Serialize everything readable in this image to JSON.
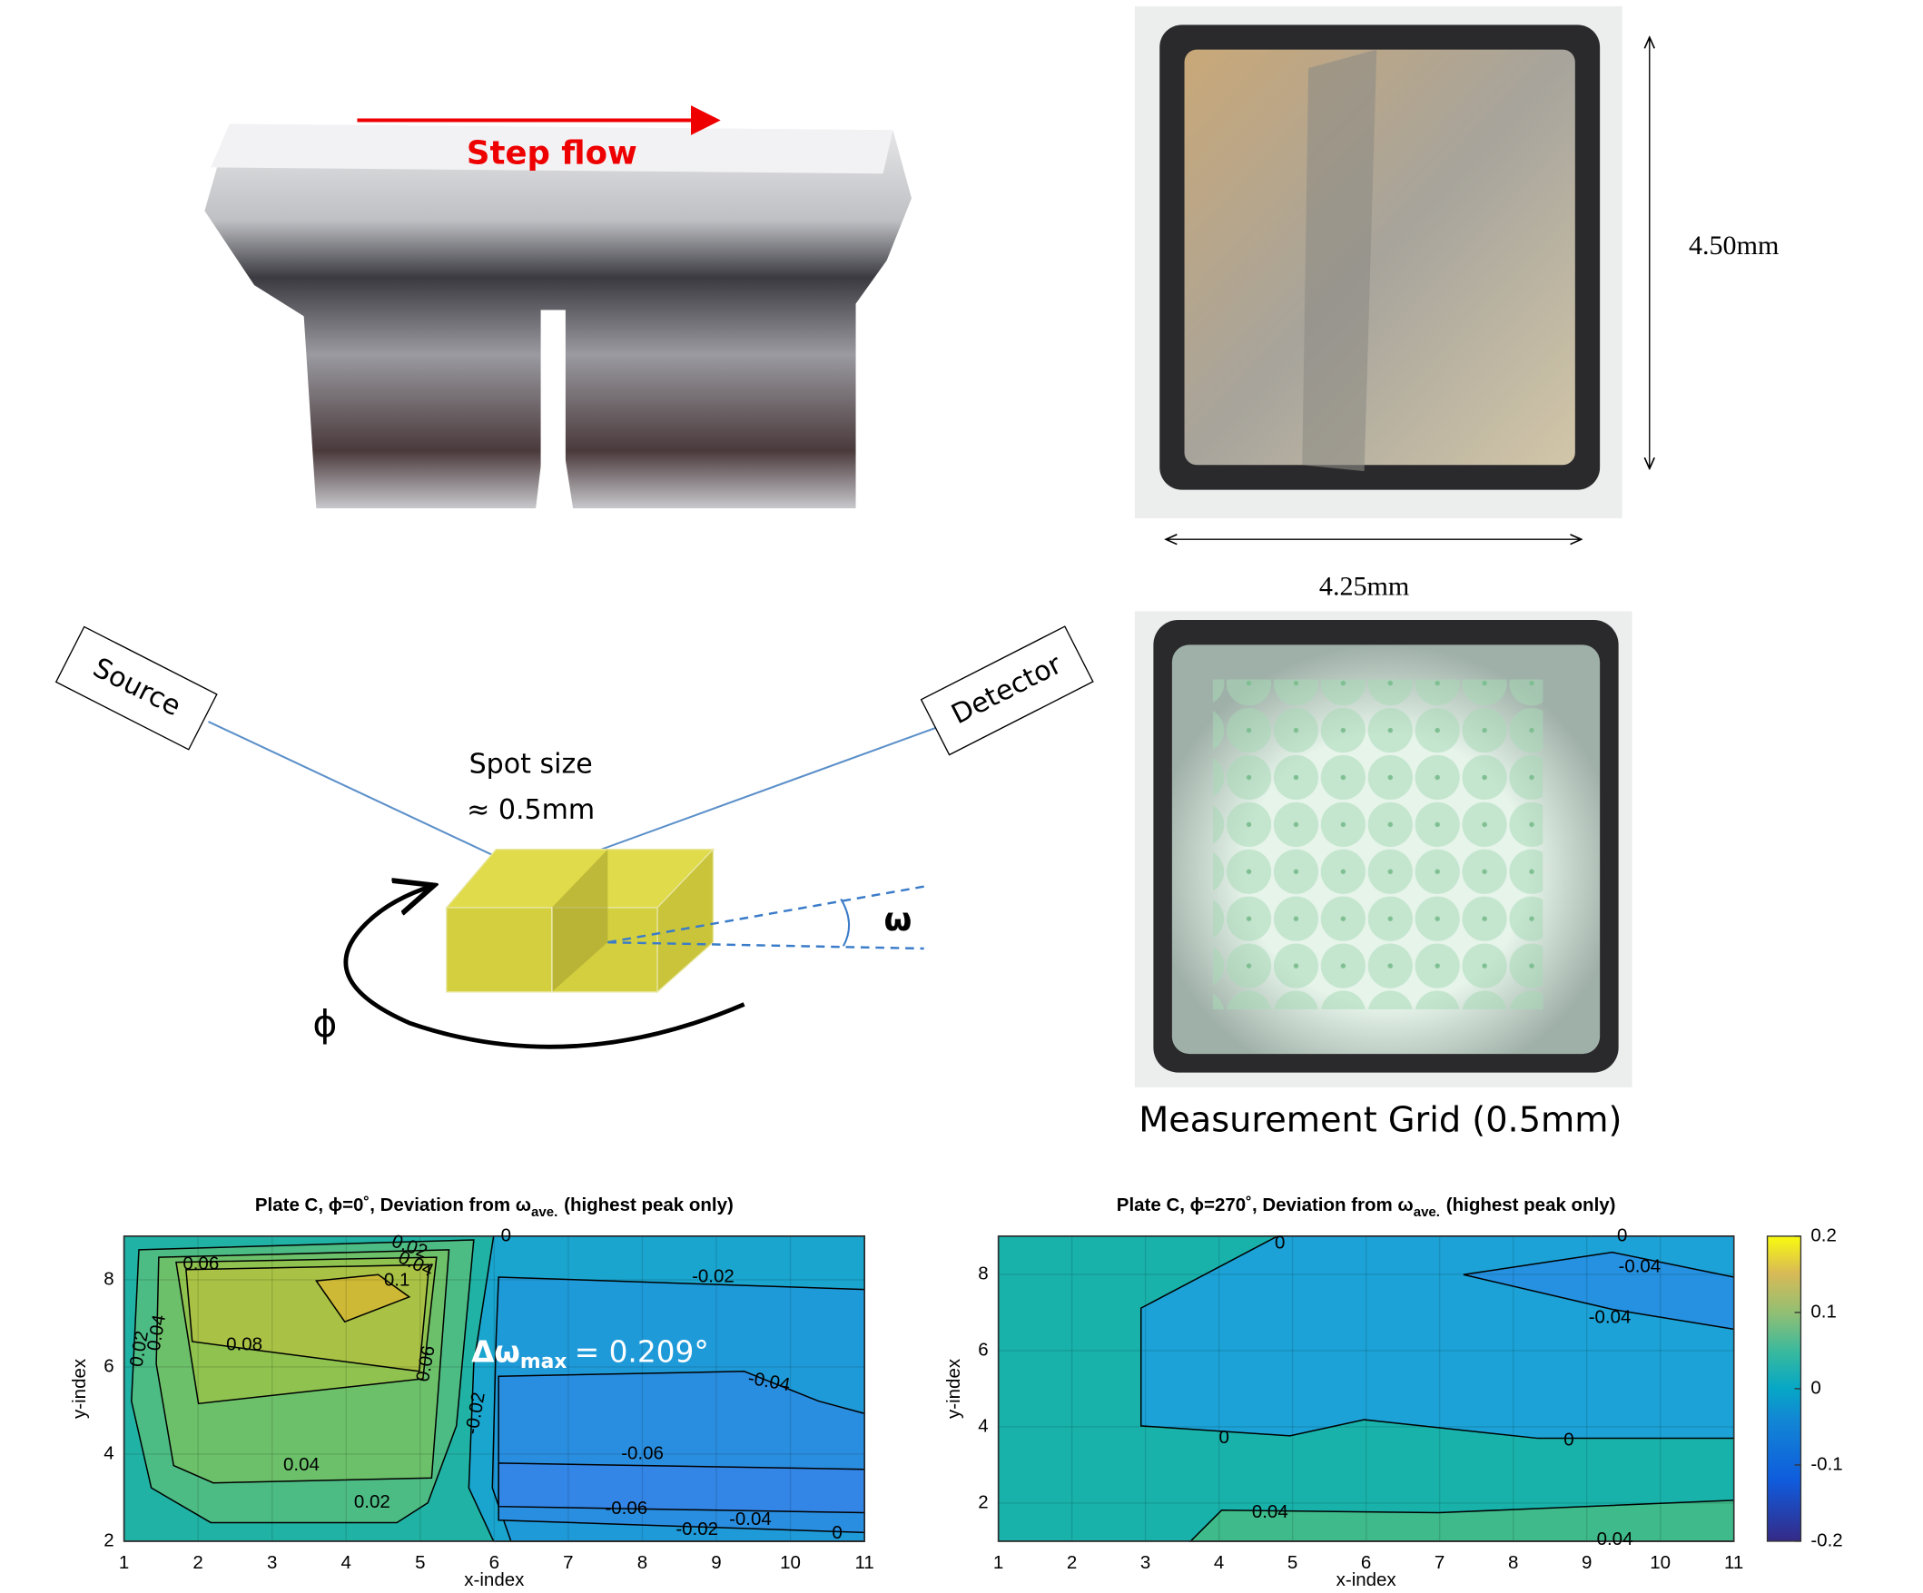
{
  "photos": {
    "step_flow": "Step flow",
    "height": "4.50mm",
    "width": "4.25mm",
    "grid_caption": "Measurement Grid (0.5mm)"
  },
  "diagram": {
    "source": "Source",
    "detector": "Detector",
    "spot_size": "Spot size",
    "spot_value": "≈ 0.5mm",
    "omega": "ω",
    "phi": "ϕ"
  },
  "chart_data": [
    {
      "type": "contour",
      "title": "Plate C, ϕ=0˚, Deviation from ω",
      "title_subscript": "ave.",
      "title_end": "(highest peak only)",
      "xlabel": "x-index",
      "ylabel": "y-index",
      "xlim": [
        1,
        11
      ],
      "ylim": [
        2,
        9
      ],
      "xticks": [
        1,
        2,
        3,
        4,
        5,
        6,
        7,
        8,
        9,
        10,
        11
      ],
      "yticks": [
        2,
        4,
        6,
        8
      ],
      "grid": true,
      "annotation": "Δω",
      "annotation_subscript": "max",
      "annotation_end": "= 0.209°",
      "contour_labels": [
        0.06,
        0.08,
        0.1,
        0.04,
        0.02,
        0.06,
        0.04,
        0.02,
        0.02,
        0.04,
        0,
        -0.02,
        -0.04,
        -0.02,
        -0.06,
        -0.06,
        -0.02,
        -0.04,
        0
      ]
    },
    {
      "type": "contour",
      "title": "Plate C, ϕ=270˚, Deviation from ω",
      "title_subscript": "ave.",
      "title_end": "(highest peak only)",
      "xlabel": "x-index",
      "ylabel": "y-index",
      "xlim": [
        1,
        11
      ],
      "ylim": [
        1,
        9
      ],
      "xticks": [
        1,
        2,
        3,
        4,
        5,
        6,
        7,
        8,
        9,
        10,
        11
      ],
      "yticks": [
        2,
        4,
        6,
        8
      ],
      "grid": true,
      "contour_labels": [
        0,
        0,
        -0.04,
        -0.04,
        0,
        0,
        0.04,
        0.04
      ],
      "colorbar": {
        "clim": [
          -0.2,
          0.2
        ],
        "ticks": [
          -0.2,
          -0.1,
          0,
          0.1,
          0.2
        ]
      }
    }
  ]
}
